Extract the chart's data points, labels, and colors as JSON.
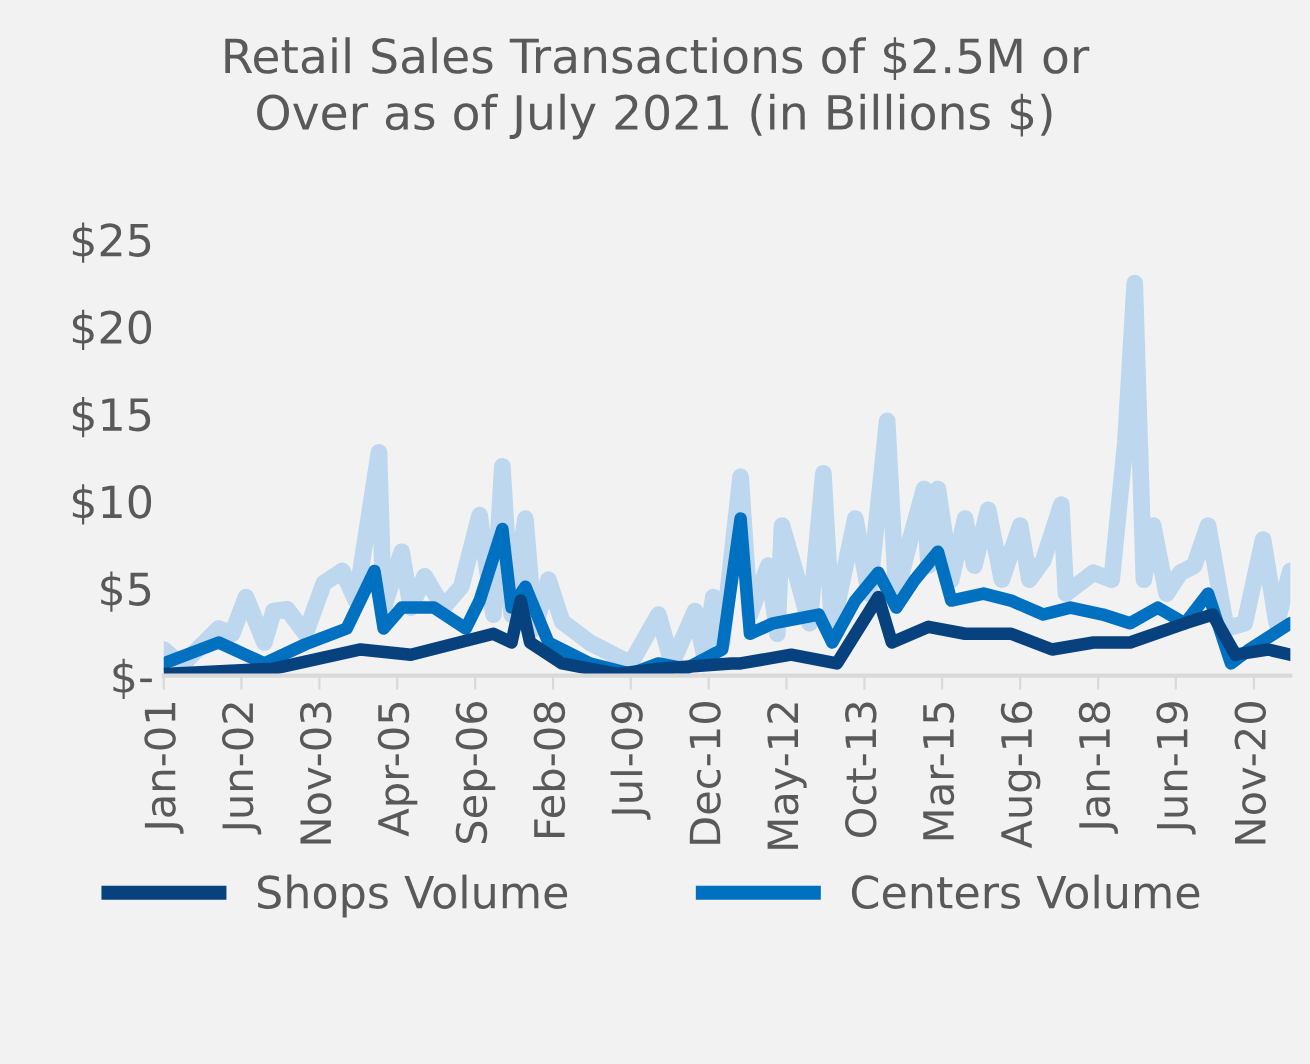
{
  "chart_data": {
    "type": "line",
    "title": "Retail Sales Transactions of $2.5M or\nOver as of July 2021 (in Billions $)",
    "ylim": [
      0,
      25
    ],
    "yticks": [
      {
        "value": 0,
        "label": "$-"
      },
      {
        "value": 5,
        "label": "$5"
      },
      {
        "value": 10,
        "label": "$10"
      },
      {
        "value": 15,
        "label": "$15"
      },
      {
        "value": 20,
        "label": "$20"
      },
      {
        "value": 25,
        "label": "$25"
      }
    ],
    "xlim": [
      "2001-01",
      "2021-07"
    ],
    "xticks": [
      {
        "value": "2001-01",
        "label": "Jan-01"
      },
      {
        "value": "2002-06",
        "label": "Jun-02"
      },
      {
        "value": "2003-11",
        "label": "Nov-03"
      },
      {
        "value": "2005-04",
        "label": "Apr-05"
      },
      {
        "value": "2006-09",
        "label": "Sep-06"
      },
      {
        "value": "2008-02",
        "label": "Feb-08"
      },
      {
        "value": "2009-07",
        "label": "Jul-09"
      },
      {
        "value": "2010-12",
        "label": "Dec-10"
      },
      {
        "value": "2012-05",
        "label": "May-12"
      },
      {
        "value": "2013-10",
        "label": "Oct-13"
      },
      {
        "value": "2015-03",
        "label": "Mar-15"
      },
      {
        "value": "2016-08",
        "label": "Aug-16"
      },
      {
        "value": "2018-01",
        "label": "Jan-18"
      },
      {
        "value": "2019-06",
        "label": "Jun-19"
      },
      {
        "value": "2020-11",
        "label": "Nov-20"
      }
    ],
    "grid": false,
    "legend": "bottom",
    "marker": "none",
    "line_style": "solid",
    "series": [
      {
        "color": "#bdd7ee",
        "x": [
          "2001-01",
          "2001-05",
          "2002-01",
          "2002-04",
          "2002-07",
          "2002-11",
          "2003-01",
          "2003-04",
          "2003-08",
          "2003-12",
          "2004-04",
          "2004-07",
          "2004-12",
          "2005-01",
          "2005-05",
          "2005-07",
          "2005-10",
          "2006-02",
          "2006-06",
          "2006-10",
          "2007-01",
          "2007-03",
          "2007-05",
          "2007-08",
          "2007-10",
          "2008-01",
          "2008-04",
          "2008-10",
          "2009-07",
          "2010-01",
          "2010-04",
          "2010-09",
          "2010-11",
          "2011-01",
          "2011-03",
          "2011-07",
          "2011-09",
          "2012-01",
          "2012-03",
          "2012-04",
          "2012-07",
          "2012-10",
          "2013-01",
          "2013-03",
          "2013-08",
          "2013-11",
          "2014-03",
          "2014-05",
          "2014-08",
          "2014-11",
          "2014-12",
          "2015-02",
          "2015-05",
          "2015-08",
          "2015-10",
          "2016-01",
          "2016-04",
          "2016-08",
          "2016-10",
          "2017-01",
          "2017-05",
          "2017-06",
          "2017-12",
          "2018-04",
          "2018-07",
          "2018-09",
          "2018-11",
          "2019-01",
          "2019-04",
          "2019-07",
          "2019-10",
          "2020-01",
          "2020-05",
          "2020-09",
          "2021-01",
          "2021-04",
          "2021-07"
        ],
        "values": [
          1.5,
          0.6,
          2.7,
          2.4,
          4.5,
          1.9,
          3.7,
          3.8,
          2.4,
          5.3,
          6.0,
          4.3,
          12.8,
          3.9,
          7.1,
          3.9,
          5.7,
          3.9,
          5.1,
          9.2,
          3.5,
          12.0,
          3.5,
          9.0,
          2.7,
          5.5,
          3.1,
          1.9,
          0.7,
          3.5,
          0.7,
          3.7,
          1.2,
          4.5,
          1.9,
          11.4,
          3.5,
          6.3,
          2.4,
          8.6,
          5.9,
          3.0,
          11.6,
          2.7,
          9.0,
          4.7,
          14.6,
          4.7,
          7.8,
          10.7,
          6.3,
          10.7,
          5.5,
          9.0,
          6.3,
          9.5,
          5.5,
          8.6,
          5.5,
          6.6,
          9.8,
          4.7,
          5.9,
          5.5,
          13.4,
          22.5,
          5.5,
          8.6,
          4.7,
          5.9,
          6.3,
          8.6,
          2.7,
          3.0,
          7.8,
          3.0,
          6.0
        ]
      },
      {
        "name": "Centers Volume",
        "color": "#0070c0",
        "x": [
          "2001-01",
          "2002-01",
          "2002-11",
          "2003-08",
          "2004-05",
          "2004-11",
          "2005-01",
          "2005-05",
          "2005-12",
          "2006-07",
          "2006-10",
          "2007-03",
          "2007-05",
          "2007-08",
          "2008-01",
          "2008-10",
          "2009-07",
          "2010-01",
          "2010-07",
          "2011-03",
          "2011-07",
          "2011-09",
          "2012-02",
          "2012-12",
          "2013-03",
          "2013-08",
          "2014-01",
          "2014-05",
          "2014-09",
          "2015-02",
          "2015-05",
          "2015-12",
          "2016-06",
          "2017-01",
          "2017-07",
          "2018-02",
          "2018-08",
          "2019-02",
          "2019-08",
          "2020-01",
          "2020-06",
          "2020-10",
          "2021-07"
        ],
        "values": [
          0.7,
          1.9,
          0.7,
          1.8,
          2.7,
          6.0,
          2.7,
          3.9,
          3.9,
          2.7,
          4.3,
          8.4,
          3.9,
          5.1,
          1.9,
          0.7,
          0.1,
          0.7,
          0.4,
          1.5,
          9.0,
          2.4,
          3.0,
          3.5,
          1.9,
          4.3,
          5.9,
          3.9,
          5.5,
          7.1,
          4.3,
          4.7,
          4.3,
          3.5,
          3.9,
          3.5,
          3.0,
          3.9,
          3.0,
          4.7,
          0.7,
          1.5,
          3.0
        ]
      },
      {
        "name": "Shops Volume",
        "color": "#08427e",
        "x": [
          "2001-01",
          "2003-01",
          "2004-08",
          "2005-07",
          "2007-01",
          "2007-05",
          "2007-07",
          "2007-09",
          "2008-04",
          "2009-04",
          "2010-01",
          "2011-05",
          "2011-07",
          "2012-06",
          "2013-04",
          "2014-01",
          "2014-04",
          "2014-12",
          "2015-08",
          "2016-06",
          "2017-03",
          "2017-12",
          "2018-08",
          "2019-08",
          "2020-02",
          "2020-07",
          "2021-02",
          "2021-07"
        ],
        "values": [
          0.1,
          0.4,
          1.5,
          1.2,
          2.4,
          1.9,
          4.3,
          1.9,
          0.7,
          0.1,
          0.4,
          0.7,
          0.7,
          1.2,
          0.7,
          4.5,
          1.9,
          2.8,
          2.4,
          2.4,
          1.5,
          1.9,
          1.9,
          3.0,
          3.5,
          1.2,
          1.5,
          1.2
        ]
      }
    ]
  }
}
